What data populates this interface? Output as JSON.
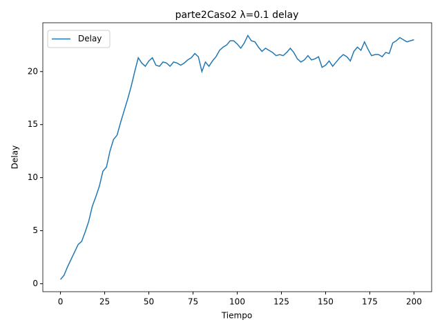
{
  "chart_data": {
    "type": "line",
    "title": "parte2Caso2 λ=0.1 delay",
    "xlabel": "Tiempo",
    "ylabel": "Delay",
    "x": [
      0,
      2,
      4,
      6,
      8,
      10,
      12,
      14,
      16,
      18,
      20,
      22,
      24,
      26,
      28,
      30,
      32,
      34,
      36,
      38,
      40,
      42,
      44,
      46,
      48,
      50,
      52,
      54,
      56,
      58,
      60,
      62,
      64,
      66,
      68,
      70,
      72,
      74,
      76,
      78,
      80,
      82,
      84,
      86,
      88,
      90,
      92,
      94,
      96,
      98,
      100,
      102,
      104,
      106,
      108,
      110,
      112,
      114,
      116,
      118,
      120,
      122,
      124,
      126,
      128,
      130,
      132,
      134,
      136,
      138,
      140,
      142,
      144,
      146,
      148,
      150,
      152,
      154,
      156,
      158,
      160,
      162,
      164,
      166,
      168,
      170,
      172,
      174,
      176,
      178,
      180,
      182,
      184,
      186,
      188,
      190,
      192,
      194,
      196,
      198,
      200
    ],
    "series": [
      {
        "name": "Delay",
        "color": "#1f77b4",
        "values": [
          0.4,
          0.8,
          1.6,
          2.3,
          3.0,
          3.7,
          4.0,
          4.9,
          5.9,
          7.3,
          8.2,
          9.2,
          10.6,
          11.0,
          12.5,
          13.6,
          14.0,
          15.2,
          16.3,
          17.4,
          18.6,
          20.0,
          21.3,
          20.8,
          20.5,
          21.0,
          21.3,
          20.6,
          20.5,
          20.9,
          20.8,
          20.5,
          20.9,
          20.8,
          20.6,
          20.8,
          21.1,
          21.3,
          21.7,
          21.4,
          20.0,
          20.9,
          20.5,
          21.0,
          21.4,
          22.0,
          22.3,
          22.5,
          22.9,
          22.9,
          22.6,
          22.2,
          22.7,
          23.4,
          22.9,
          22.8,
          22.3,
          21.9,
          22.2,
          22.0,
          21.8,
          21.5,
          21.6,
          21.5,
          21.8,
          22.2,
          21.8,
          21.2,
          20.9,
          21.1,
          21.5,
          21.1,
          21.2,
          21.4,
          20.4,
          20.6,
          21.0,
          20.5,
          20.9,
          21.3,
          21.6,
          21.4,
          21.0,
          21.9,
          22.3,
          22.0,
          22.8,
          22.1,
          21.5,
          21.6,
          21.6,
          21.4,
          21.8,
          21.7,
          22.7,
          22.9,
          23.2,
          23.0,
          22.8,
          22.9,
          23.0
        ]
      }
    ],
    "xlim": [
      -10,
      210
    ],
    "ylim": [
      -0.75,
      24.6
    ],
    "xticks": [
      0,
      25,
      50,
      75,
      100,
      125,
      150,
      175,
      200
    ],
    "yticks": [
      0,
      5,
      10,
      15,
      20
    ],
    "legend": "upper left"
  }
}
